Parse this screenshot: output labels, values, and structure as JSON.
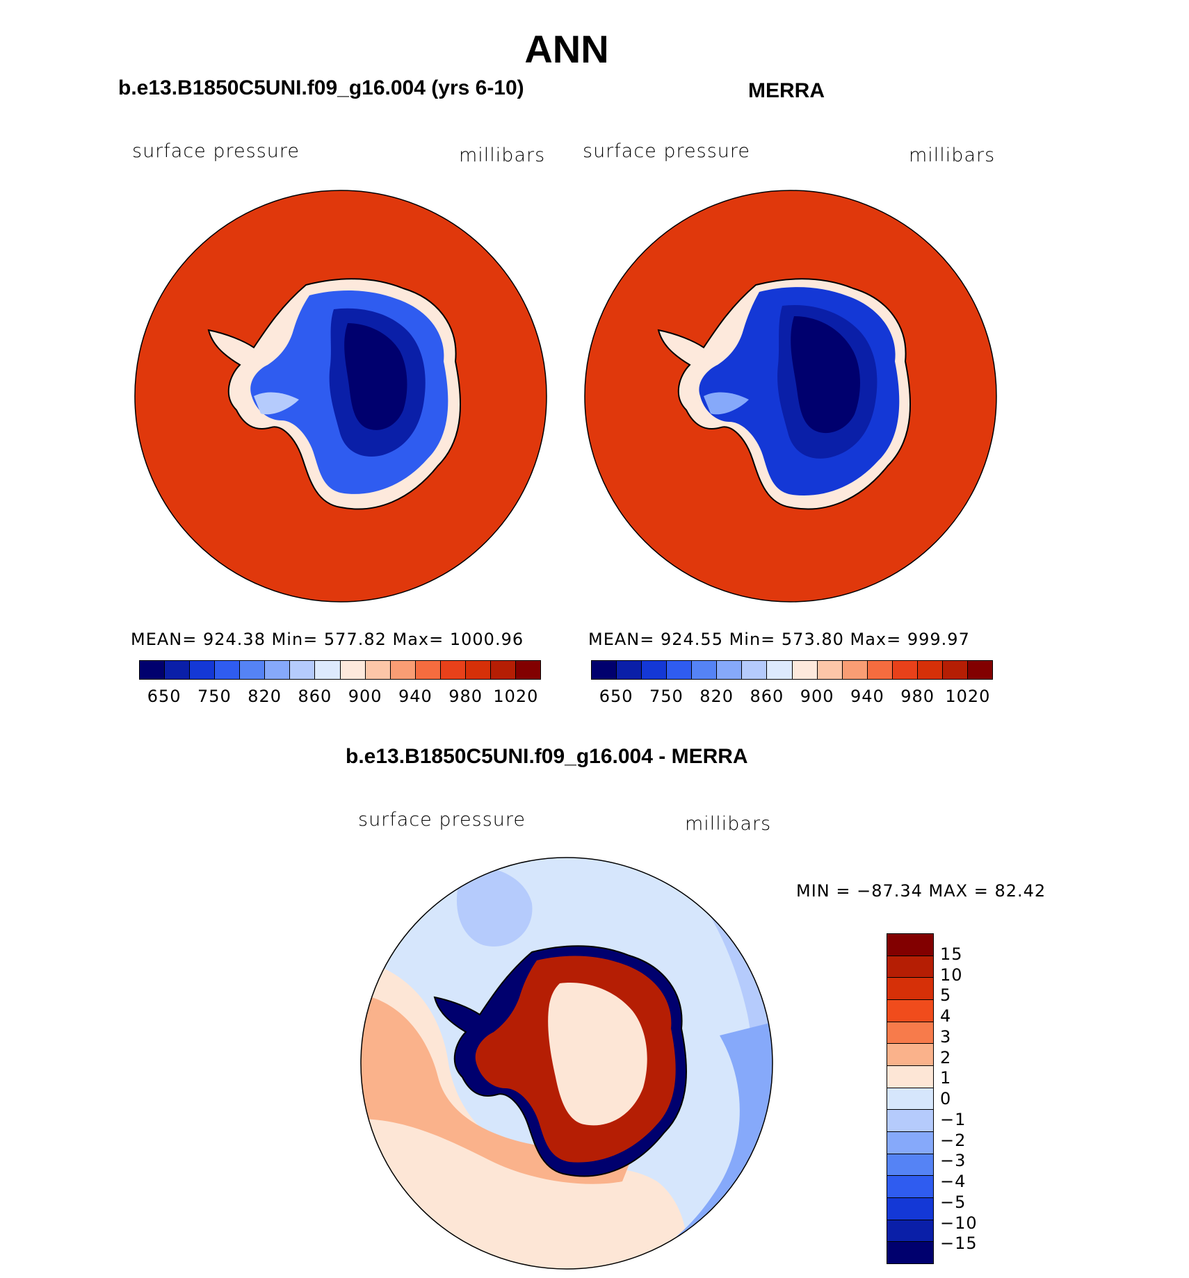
{
  "main_title": "ANN",
  "panels": [
    {
      "title": "b.e13.B1850C5UNI.f09_g16.004 (yrs 6-10)",
      "field": "surface pressure",
      "units": "millibars",
      "stats": "MEAN= 924.38   Min= 577.82   Max= 1000.96"
    },
    {
      "title": "MERRA",
      "field": "surface pressure",
      "units": "millibars",
      "stats": "MEAN= 924.55   Min= 573.80   Max= 999.97"
    }
  ],
  "diff_panel": {
    "title": "b.e13.B1850C5UNI.f09_g16.004 - MERRA",
    "field": "surface pressure",
    "units": "millibars",
    "stats": "MIN = −87.34 MAX =   82.42"
  },
  "abs_colorbar": {
    "colors": [
      "#00006e",
      "#0a1fa8",
      "#1438d6",
      "#2f5cf0",
      "#5583f5",
      "#86a9fa",
      "#b5cbfc",
      "#ddeafd",
      "#fde9dc",
      "#fcc6a8",
      "#f99d74",
      "#f56c3f",
      "#e8411a",
      "#d63008",
      "#b51e04",
      "#820000"
    ],
    "tick_labels": [
      "650",
      "750",
      "820",
      "860",
      "900",
      "940",
      "980",
      "1020"
    ]
  },
  "diff_colorbar": {
    "colors": [
      "#820000",
      "#b51e04",
      "#d63008",
      "#f04c1c",
      "#f77b4b",
      "#fab28b",
      "#fde6d6",
      "#d6e6fc",
      "#b5cbfc",
      "#86a9fa",
      "#5583f5",
      "#2f5cf0",
      "#1438d6",
      "#0a1fa8",
      "#00006e"
    ],
    "tick_labels": [
      "15",
      "10",
      "5",
      "4",
      "3",
      "2",
      "1",
      "0",
      "−1",
      "−2",
      "−3",
      "−4",
      "−5",
      "−10",
      "−15"
    ]
  },
  "map_colors": {
    "ocean_abs": "#e0380c",
    "coast": "#000000"
  },
  "chart_data": [
    {
      "type": "heatmap",
      "title": "b.e13.B1850C5UNI.f09_g16.004 (yrs 6-10)",
      "variable": "surface pressure",
      "units": "millibars",
      "mean": 924.38,
      "min": 577.82,
      "max": 1000.96,
      "levels": [
        650,
        700,
        750,
        780,
        820,
        840,
        860,
        880,
        900,
        920,
        940,
        960,
        980,
        1000,
        1020
      ]
    },
    {
      "type": "heatmap",
      "title": "MERRA",
      "variable": "surface pressure",
      "units": "millibars",
      "mean": 924.55,
      "min": 573.8,
      "max": 999.97,
      "levels": [
        650,
        700,
        750,
        780,
        820,
        840,
        860,
        880,
        900,
        920,
        940,
        960,
        980,
        1000,
        1020
      ]
    },
    {
      "type": "heatmap",
      "title": "b.e13.B1850C5UNI.f09_g16.004 - MERRA",
      "variable": "surface pressure",
      "units": "millibars",
      "min": -87.34,
      "max": 82.42,
      "levels": [
        -15,
        -10,
        -5,
        -4,
        -3,
        -2,
        -1,
        0,
        1,
        2,
        3,
        4,
        5,
        10,
        15
      ]
    }
  ]
}
